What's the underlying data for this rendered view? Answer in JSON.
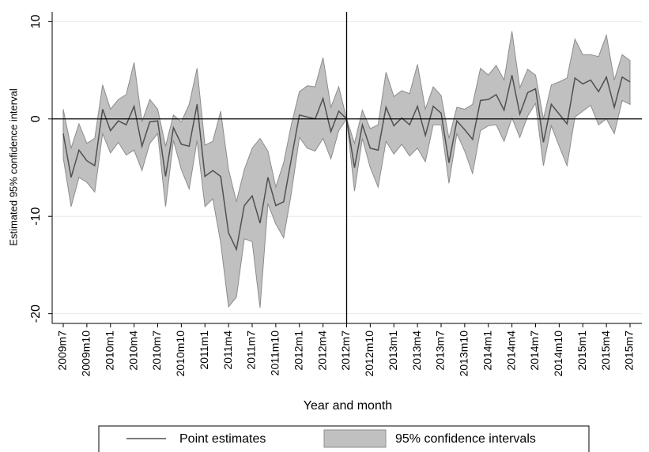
{
  "chart_data": {
    "type": "line-band",
    "y_label": "Estimated 95% confidence interval",
    "x_label": "Year and month",
    "categories": [
      "2009m7",
      null,
      null,
      "2009m10",
      null,
      null,
      "2010m1",
      null,
      null,
      "2010m4",
      null,
      null,
      "2010m7",
      null,
      null,
      "2010m10",
      null,
      null,
      "2011m1",
      null,
      null,
      "2011m4",
      null,
      null,
      "2011m7",
      null,
      null,
      "2011m10",
      null,
      null,
      "2012m1",
      null,
      null,
      "2012m4",
      null,
      null,
      "2012m7",
      null,
      null,
      "2012m10",
      null,
      null,
      "2013m1",
      null,
      null,
      "2013m4",
      null,
      null,
      "2013m7",
      null,
      null,
      "2013m10",
      null,
      null,
      "2014m1",
      null,
      null,
      "2014m4",
      null,
      null,
      "2014m7",
      null,
      null,
      "2014m10",
      null,
      null,
      "2015m1",
      null,
      null,
      "2015m4",
      null,
      null,
      "2015m7"
    ],
    "series": [
      {
        "name": "Point estimates",
        "color": "#505050",
        "values": [
          -1.5,
          -6,
          -3.2,
          -4.3,
          -4.8,
          1.0,
          -1.2,
          -0.2,
          -0.6,
          1.3,
          -2.8,
          -0.3,
          -0.2,
          -5.9,
          -0.9,
          -2.6,
          -2.8,
          1.5,
          -5.9,
          -5.3,
          -5.9,
          -11.7,
          -13.4,
          -8.9,
          -7.9,
          -10.7,
          -6.0,
          -8.9,
          -8.5,
          -4.0,
          0.4,
          0.2,
          0.0,
          2.1,
          -1.3,
          0.8,
          0.0,
          -5.0,
          -0.6,
          -3.0,
          -3.2,
          1.2,
          -0.7,
          0.1,
          -0.6,
          1.3,
          -1.7,
          1.3,
          0.6,
          -4.5,
          -0.2,
          -1.1,
          -2.1,
          1.9,
          2.0,
          2.5,
          0.9,
          4.5,
          0.5,
          2.7,
          3.1,
          -2.4,
          1.5,
          0.5,
          -0.5,
          4.2,
          3.6,
          4.0,
          2.8,
          4.3,
          1.2,
          4.3,
          3.8
        ]
      },
      {
        "name": "95% confidence intervals",
        "color": "#c0c0c0",
        "upper": [
          1,
          -3,
          -0.5,
          -2.5,
          -2,
          3.5,
          1,
          2,
          2.5,
          5.8,
          -0.3,
          2,
          1,
          -2.8,
          0.4,
          -0.3,
          1.5,
          5.2,
          -2.7,
          -2.3,
          0.8,
          -5.2,
          -8.5,
          -5.2,
          -3,
          -2,
          -3.3,
          -7,
          -4.5,
          -0.5,
          2.8,
          3.4,
          3.3,
          6.3,
          1.2,
          3.3,
          0,
          -2.5,
          0.9,
          -1,
          -0.6,
          4.8,
          2.3,
          2.9,
          2.6,
          5.6,
          1,
          3.3,
          2.4,
          -2,
          1.2,
          1,
          1.5,
          5.2,
          4.5,
          5.5,
          4,
          9,
          3.2,
          5.1,
          4.5,
          0,
          3.5,
          3.8,
          4.2,
          8.2,
          6.6,
          6.6,
          6.4,
          8.6,
          4,
          6.6,
          6
        ],
        "lower": [
          -4,
          -9,
          -6,
          -6.5,
          -7.5,
          -1.5,
          -3.5,
          -2.4,
          -3.7,
          -3.2,
          -5.3,
          -2.5,
          -1.5,
          -9,
          -2.2,
          -5.2,
          -7.2,
          -2.2,
          -9,
          -8.2,
          -12.7,
          -19.3,
          -18.3,
          -12.3,
          -12.6,
          -19.4,
          -8.7,
          -10.8,
          -12.2,
          -7.5,
          -1.9,
          -3,
          -3.3,
          -2,
          -4.1,
          -1.2,
          0,
          -7.4,
          -2,
          -5,
          -7,
          -2.3,
          -3.6,
          -2.6,
          -3.8,
          -3,
          -4.4,
          -0.6,
          -0.6,
          -6.6,
          -1.5,
          -3.3,
          -5.6,
          -1.2,
          -0.7,
          -0.6,
          -2.3,
          0.1,
          -1.9,
          0.3,
          1.6,
          -4.8,
          -0.7,
          -2.8,
          -4.8,
          0.2,
          0.8,
          1.4,
          -0.6,
          0,
          -1.5,
          1.9,
          1.5
        ]
      }
    ],
    "ylim": [
      -21,
      11
    ],
    "yticks": [
      -20,
      -10,
      0,
      10
    ],
    "grid": true,
    "reference_lines": {
      "y": 0,
      "x": "2012m7"
    }
  }
}
